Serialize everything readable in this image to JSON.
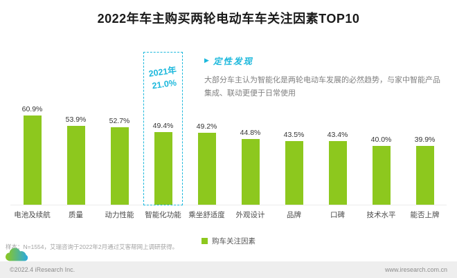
{
  "title": "2022年车主购买两轮电动车车关注因素TOP10",
  "chart_data": {
    "type": "bar",
    "title": "2022年车主购买两轮电动车车关注因素TOP10",
    "categories": [
      "电池及续航",
      "质量",
      "动力性能",
      "智能化功能",
      "乘坐舒适度",
      "外观设计",
      "品牌",
      "口碑",
      "技术水平",
      "能否上牌"
    ],
    "values": [
      60.9,
      53.9,
      52.7,
      49.4,
      49.2,
      44.8,
      43.5,
      43.4,
      40.0,
      39.9
    ],
    "unit": "%",
    "ylim": [
      0,
      65
    ],
    "grid": false,
    "legend_position": "bottom",
    "legend": "购车关注因素",
    "bar_color": "#8dc81e",
    "highlight": {
      "index": 3,
      "category": "智能化功能",
      "label_line1": "2021年",
      "label_line2": "21.0%",
      "previous_year_value": 21.0,
      "color": "#1cb8dc"
    }
  },
  "qualitative": {
    "heading": "定性发现",
    "body": "大部分车主认为智能化是两轮电动车发展的必然趋势，与家中智能产品集成、联动更便于日常使用"
  },
  "footnote": "样本：N=1554，艾瑞咨询于2022年2月通过艾客帮网上调研获得。",
  "footer": {
    "left": "©2022.4 iResearch Inc.",
    "right": "www.iresearch.com.cn"
  }
}
